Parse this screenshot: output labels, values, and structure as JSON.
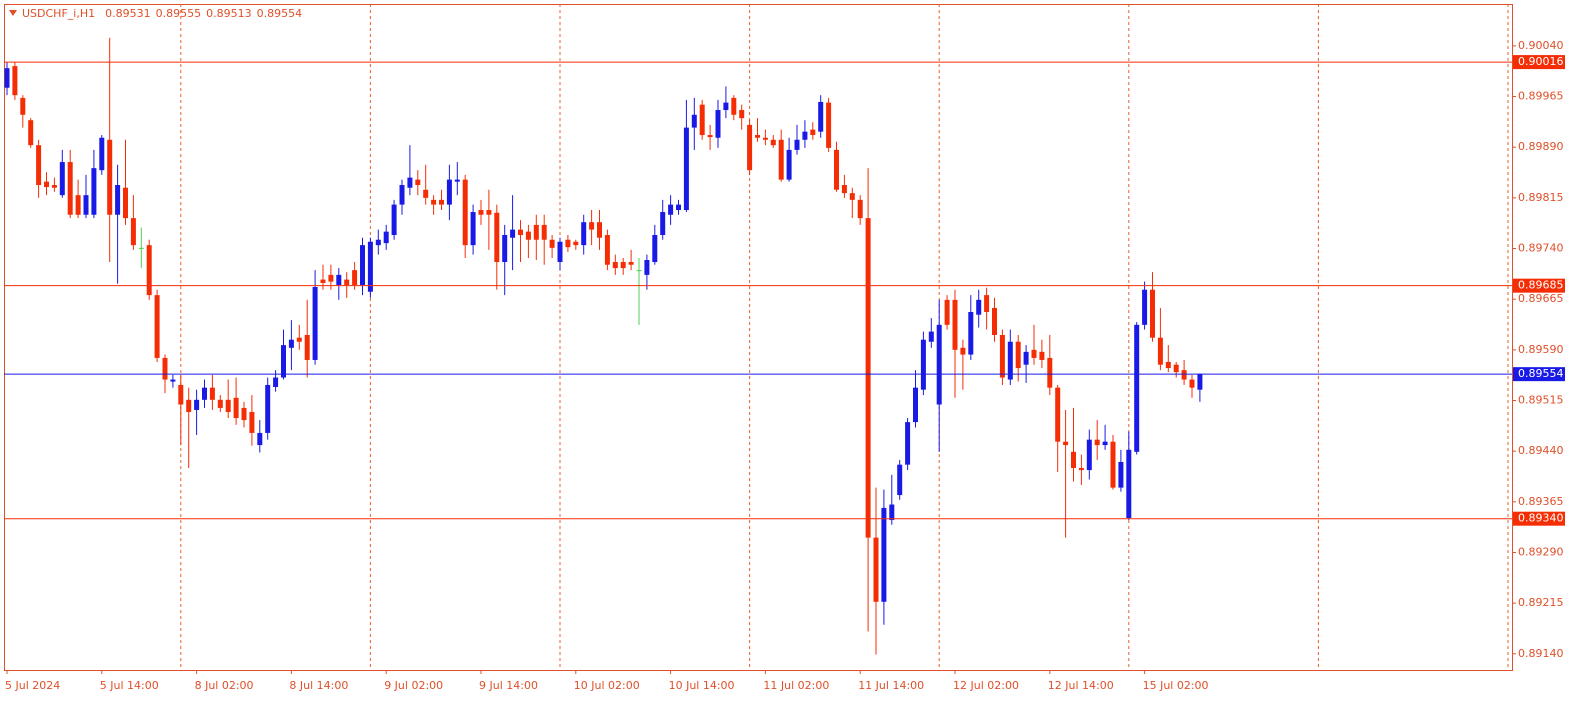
{
  "chart_data": {
    "type": "candlestick",
    "title": "USDCHF_i,H1",
    "title_values": [
      0.89531,
      0.89555,
      0.89513,
      0.89554
    ],
    "colors": {
      "up": "#1a1ae6",
      "down": "#f52d05",
      "doji": "#4cd14c",
      "axis": "#e0502a",
      "separator": "#e8602c"
    },
    "ylim": [
      0.89116,
      0.90102
    ],
    "yticks": [
      {
        "value": 0.9004,
        "label": "0.90040"
      },
      0.89965,
      {
        "value": 0.8989,
        "label": "0.89890"
      },
      0.89815,
      {
        "value": 0.8974,
        "label": "0.89740"
      },
      0.89665,
      {
        "value": 0.8959,
        "label": "0.89590"
      },
      0.89515,
      {
        "value": 0.8944,
        "label": "0.89440"
      },
      0.89365,
      {
        "value": 0.8929,
        "label": "0.89290"
      },
      0.89215,
      {
        "value": 0.8914,
        "label": "0.89140"
      }
    ],
    "hlines": [
      {
        "value": 0.90016,
        "color": "#f52d05"
      },
      {
        "value": 0.89685,
        "color": "#f52d05"
      },
      {
        "value": 0.89554,
        "color": "#1a1ae6"
      },
      {
        "value": 0.8934,
        "label": "0.89340",
        "color": "#f52d05"
      }
    ],
    "categories": [
      "5 Jul 2024",
      null,
      null,
      null,
      null,
      null,
      null,
      null,
      null,
      null,
      null,
      null,
      "5 Jul 14:00",
      null,
      null,
      null,
      null,
      null,
      null,
      null,
      null,
      null,
      null,
      null,
      "8 Jul 02:00",
      null,
      null,
      null,
      null,
      null,
      null,
      null,
      null,
      null,
      null,
      null,
      "8 Jul 14:00",
      null,
      null,
      null,
      null,
      null,
      null,
      null,
      null,
      null,
      null,
      null,
      "9 Jul 02:00",
      null,
      null,
      null,
      null,
      null,
      null,
      null,
      null,
      null,
      null,
      null,
      "9 Jul 14:00",
      null,
      null,
      null,
      null,
      null,
      null,
      null,
      null,
      null,
      null,
      null,
      "10 Jul 02:00",
      null,
      null,
      null,
      null,
      null,
      null,
      null,
      null,
      null,
      null,
      null,
      "10 Jul 14:00",
      null,
      null,
      null,
      null,
      null,
      null,
      null,
      null,
      null,
      null,
      null,
      "11 Jul 02:00",
      null,
      null,
      null,
      null,
      null,
      null,
      null,
      null,
      null,
      null,
      null,
      "11 Jul 14:00",
      null,
      null,
      null,
      null,
      null,
      null,
      null,
      null,
      null,
      null,
      null,
      "12 Jul 02:00",
      null,
      null,
      null,
      null,
      null,
      null,
      null,
      null,
      null,
      null,
      null,
      "12 Jul 14:00",
      null,
      null,
      null,
      null,
      null,
      null,
      null,
      null,
      null,
      null,
      null,
      "15 Jul 02:00",
      null,
      null,
      null,
      null,
      null,
      null,
      null
    ],
    "candles": [
      [
        0.89978,
        0.90016,
        0.89967,
        0.90007
      ],
      [
        0.9001,
        0.90016,
        0.8996,
        0.89967
      ],
      [
        0.89963,
        0.89967,
        0.89919,
        0.89938
      ],
      [
        0.8993,
        0.89933,
        0.89889,
        0.89893
      ],
      [
        0.89893,
        0.89901,
        0.89815,
        0.89834
      ],
      [
        0.89839,
        0.89853,
        0.89819,
        0.89831
      ],
      [
        0.89834,
        0.89845,
        0.89824,
        0.8983
      ],
      [
        0.89819,
        0.89886,
        0.89815,
        0.89868
      ],
      [
        0.89868,
        0.89886,
        0.89785,
        0.8979
      ],
      [
        0.89819,
        0.89842,
        0.89785,
        0.8979
      ],
      [
        0.8979,
        0.89849,
        0.89785,
        0.89819
      ],
      [
        0.8979,
        0.89886,
        0.89785,
        0.89859
      ],
      [
        0.89856,
        0.89908,
        0.89849,
        0.89904
      ],
      [
        0.89901,
        0.90052,
        0.8972,
        0.8979
      ],
      [
        0.8979,
        0.89864,
        0.89688,
        0.89834
      ],
      [
        0.8983,
        0.89901,
        0.89775,
        0.89785
      ],
      [
        0.89785,
        0.89819,
        0.89738,
        0.89745
      ],
      [
        0.89741,
        0.89771,
        0.89711,
        0.89741
      ],
      [
        0.89745,
        0.89753,
        0.89664,
        0.89671
      ],
      [
        0.89671,
        0.89679,
        0.89572,
        0.89578
      ],
      [
        0.89578,
        0.89583,
        0.89526,
        0.89546
      ],
      [
        0.89543,
        0.89553,
        0.89534,
        0.89546
      ],
      [
        0.89538,
        0.89553,
        0.89449,
        0.89509
      ],
      [
        0.89516,
        0.89534,
        0.89415,
        0.89498
      ],
      [
        0.89501,
        0.89531,
        0.89464,
        0.89516
      ],
      [
        0.89516,
        0.89546,
        0.89504,
        0.89534
      ],
      [
        0.89534,
        0.89553,
        0.89501,
        0.89516
      ],
      [
        0.89516,
        0.89523,
        0.89498,
        0.89504
      ],
      [
        0.89516,
        0.89546,
        0.89489,
        0.89498
      ],
      [
        0.89519,
        0.89549,
        0.89479,
        0.89489
      ],
      [
        0.89504,
        0.89513,
        0.89475,
        0.89486
      ],
      [
        0.89498,
        0.89523,
        0.89448,
        0.89467
      ],
      [
        0.89449,
        0.89486,
        0.89438,
        0.89467
      ],
      [
        0.89467,
        0.89549,
        0.89457,
        0.89538
      ],
      [
        0.89535,
        0.8956,
        0.89528,
        0.89549
      ],
      [
        0.89549,
        0.8962,
        0.89546,
        0.89597
      ],
      [
        0.89593,
        0.89634,
        0.8956,
        0.89605
      ],
      [
        0.89608,
        0.89627,
        0.8959,
        0.89602
      ],
      [
        0.89612,
        0.89664,
        0.89549,
        0.89575
      ],
      [
        0.89575,
        0.89708,
        0.89568,
        0.89683
      ],
      [
        0.89694,
        0.89716,
        0.89679,
        0.89689
      ],
      [
        0.89701,
        0.89716,
        0.89679,
        0.89691
      ],
      [
        0.89686,
        0.89711,
        0.89664,
        0.89701
      ],
      [
        0.89694,
        0.89705,
        0.89667,
        0.89686
      ],
      [
        0.89708,
        0.8972,
        0.89679,
        0.89686
      ],
      [
        0.89686,
        0.89756,
        0.89671,
        0.89745
      ],
      [
        0.89676,
        0.89756,
        0.89667,
        0.8975
      ],
      [
        0.89745,
        0.89768,
        0.89731,
        0.89753
      ],
      [
        0.89748,
        0.89775,
        0.89738,
        0.89765
      ],
      [
        0.8976,
        0.89812,
        0.89753,
        0.89805
      ],
      [
        0.89805,
        0.89842,
        0.8979,
        0.89834
      ],
      [
        0.8983,
        0.89893,
        0.89819,
        0.89845
      ],
      [
        0.89842,
        0.89856,
        0.89819,
        0.89834
      ],
      [
        0.89827,
        0.89864,
        0.89805,
        0.89815
      ],
      [
        0.89812,
        0.89819,
        0.8979,
        0.89805
      ],
      [
        0.89812,
        0.89827,
        0.89797,
        0.89805
      ],
      [
        0.89805,
        0.89864,
        0.89782,
        0.89842
      ],
      [
        0.89839,
        0.89868,
        0.89819,
        0.89842
      ],
      [
        0.89842,
        0.89849,
        0.89726,
        0.89745
      ],
      [
        0.89745,
        0.89805,
        0.89731,
        0.89794
      ],
      [
        0.89797,
        0.89812,
        0.89775,
        0.8979
      ],
      [
        0.89797,
        0.89827,
        0.89738,
        0.8979
      ],
      [
        0.89793,
        0.89805,
        0.89679,
        0.8972
      ],
      [
        0.8972,
        0.89775,
        0.89671,
        0.8976
      ],
      [
        0.89756,
        0.89819,
        0.89708,
        0.89768
      ],
      [
        0.89768,
        0.89782,
        0.8972,
        0.8976
      ],
      [
        0.89765,
        0.89775,
        0.89726,
        0.89753
      ],
      [
        0.89775,
        0.8979,
        0.89723,
        0.89753
      ],
      [
        0.89775,
        0.8979,
        0.89716,
        0.89753
      ],
      [
        0.89753,
        0.8976,
        0.89726,
        0.89741
      ],
      [
        0.8972,
        0.89756,
        0.89708,
        0.8975
      ],
      [
        0.89753,
        0.8976,
        0.89735,
        0.89742
      ],
      [
        0.8975,
        0.89753,
        0.89738,
        0.89745
      ],
      [
        0.89745,
        0.8979,
        0.89731,
        0.89779
      ],
      [
        0.89779,
        0.89797,
        0.89745,
        0.89768
      ],
      [
        0.89779,
        0.89797,
        0.89738,
        0.89756
      ],
      [
        0.8976,
        0.89768,
        0.89708,
        0.89716
      ],
      [
        0.8972,
        0.89731,
        0.89701,
        0.89711
      ],
      [
        0.8972,
        0.89726,
        0.89701,
        0.89711
      ],
      [
        0.8972,
        0.89738,
        0.89708,
        0.89716
      ],
      [
        0.89708,
        0.89726,
        0.89627,
        0.89708
      ],
      [
        0.89701,
        0.89731,
        0.89679,
        0.89723
      ],
      [
        0.8972,
        0.89775,
        0.89716,
        0.8976
      ],
      [
        0.8976,
        0.89812,
        0.89753,
        0.89794
      ],
      [
        0.8979,
        0.89819,
        0.89775,
        0.89805
      ],
      [
        0.89797,
        0.89812,
        0.8979,
        0.89805
      ],
      [
        0.89797,
        0.8996,
        0.89794,
        0.89919
      ],
      [
        0.89919,
        0.89963,
        0.89886,
        0.89938
      ],
      [
        0.89953,
        0.8996,
        0.89901,
        0.89908
      ],
      [
        0.89908,
        0.89923,
        0.89886,
        0.89905
      ],
      [
        0.89904,
        0.8996,
        0.89889,
        0.89945
      ],
      [
        0.89945,
        0.8998,
        0.89933,
        0.89956
      ],
      [
        0.89963,
        0.89967,
        0.8993,
        0.89938
      ],
      [
        0.89945,
        0.89953,
        0.89916,
        0.89933
      ],
      [
        0.89923,
        0.8993,
        0.89849,
        0.89856
      ],
      [
        0.89908,
        0.89933,
        0.89898,
        0.89904
      ],
      [
        0.89904,
        0.89916,
        0.89893,
        0.89901
      ],
      [
        0.89901,
        0.89908,
        0.89889,
        0.89893
      ],
      [
        0.89901,
        0.89916,
        0.89839,
        0.89842
      ],
      [
        0.89842,
        0.89904,
        0.89839,
        0.89886
      ],
      [
        0.89886,
        0.89923,
        0.89879,
        0.89901
      ],
      [
        0.89901,
        0.8993,
        0.89889,
        0.89913
      ],
      [
        0.89916,
        0.89927,
        0.89901,
        0.89908
      ],
      [
        0.89913,
        0.89967,
        0.89904,
        0.89957
      ],
      [
        0.89956,
        0.89963,
        0.89883,
        0.89889
      ],
      [
        0.89886,
        0.89898,
        0.89824,
        0.89827
      ],
      [
        0.89834,
        0.89849,
        0.89815,
        0.89822
      ],
      [
        0.89822,
        0.8983,
        0.89785,
        0.89812
      ],
      [
        0.89812,
        0.89819,
        0.89775,
        0.89785
      ],
      [
        0.89785,
        0.89859,
        0.89173,
        0.89312
      ],
      [
        0.89312,
        0.89386,
        0.89139,
        0.89217
      ],
      [
        0.89217,
        0.89383,
        0.89183,
        0.89356
      ],
      [
        0.89338,
        0.89405,
        0.89331,
        0.89361
      ],
      [
        0.89375,
        0.89427,
        0.89368,
        0.8942
      ],
      [
        0.8942,
        0.89489,
        0.89412,
        0.89483
      ],
      [
        0.89483,
        0.8956,
        0.89475,
        0.89534
      ],
      [
        0.89531,
        0.89617,
        0.89523,
        0.89605
      ],
      [
        0.89602,
        0.89637,
        0.89593,
        0.89617
      ],
      [
        0.89509,
        0.89664,
        0.89439,
        0.89627
      ],
      [
        0.89664,
        0.89671,
        0.8962,
        0.89627
      ],
      [
        0.89664,
        0.89679,
        0.89519,
        0.8959
      ],
      [
        0.89593,
        0.89605,
        0.89531,
        0.89583
      ],
      [
        0.89583,
        0.89671,
        0.89575,
        0.89646
      ],
      [
        0.89642,
        0.89679,
        0.89623,
        0.89664
      ],
      [
        0.89671,
        0.89682,
        0.8962,
        0.89646
      ],
      [
        0.89652,
        0.89667,
        0.89602,
        0.89612
      ],
      [
        0.89612,
        0.8962,
        0.89538,
        0.89549
      ],
      [
        0.89546,
        0.8962,
        0.89538,
        0.89602
      ],
      [
        0.89602,
        0.89612,
        0.89543,
        0.89563
      ],
      [
        0.89568,
        0.89597,
        0.89541,
        0.89587
      ],
      [
        0.8959,
        0.89627,
        0.89568,
        0.89578
      ],
      [
        0.89587,
        0.89605,
        0.89563,
        0.89575
      ],
      [
        0.89578,
        0.89612,
        0.89523,
        0.89534
      ],
      [
        0.89534,
        0.89538,
        0.89409,
        0.89454
      ],
      [
        0.89454,
        0.89501,
        0.89312,
        0.89449
      ],
      [
        0.89439,
        0.89504,
        0.89395,
        0.89415
      ],
      [
        0.89415,
        0.89435,
        0.8939,
        0.89412
      ],
      [
        0.89412,
        0.89472,
        0.89398,
        0.89457
      ],
      [
        0.89457,
        0.89486,
        0.89427,
        0.89449
      ],
      [
        0.89449,
        0.89479,
        0.89442,
        0.89454
      ],
      [
        0.89454,
        0.89464,
        0.89383,
        0.89386
      ],
      [
        0.89386,
        0.89442,
        0.8938,
        0.89424
      ],
      [
        0.89341,
        0.89469,
        0.89338,
        0.89442
      ],
      [
        0.89439,
        0.89631,
        0.89435,
        0.89627
      ],
      [
        0.89627,
        0.89691,
        0.8962,
        0.89679
      ],
      [
        0.89679,
        0.89705,
        0.89602,
        0.89608
      ],
      [
        0.89608,
        0.89652,
        0.8956,
        0.89568
      ],
      [
        0.89572,
        0.89597,
        0.89557,
        0.89563
      ],
      [
        0.89568,
        0.89572,
        0.89549,
        0.89557
      ],
      [
        0.8956,
        0.89575,
        0.89538,
        0.89546
      ],
      [
        0.89546,
        0.89553,
        0.89519,
        0.89534
      ],
      [
        0.89531,
        0.89555,
        0.89513,
        0.89554
      ]
    ]
  }
}
